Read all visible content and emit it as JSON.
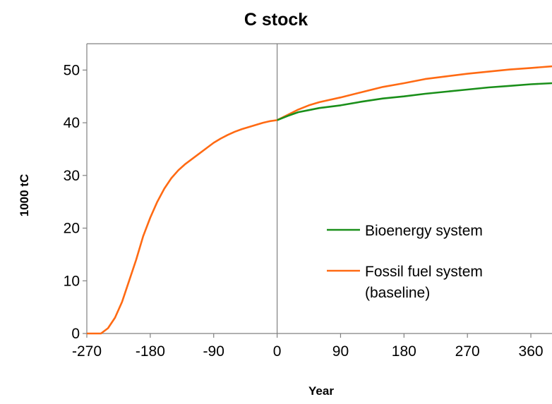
{
  "chart_data": {
    "type": "line",
    "title": "C stock",
    "xlabel": "Year",
    "ylabel": "1000 tC",
    "xlim": [
      -270,
      390
    ],
    "ylim": [
      0,
      55
    ],
    "xticks": [
      -270,
      -180,
      -90,
      0,
      90,
      180,
      270,
      360
    ],
    "yticks": [
      0,
      10,
      20,
      30,
      40,
      50
    ],
    "grid": false,
    "legend_position": "right",
    "vertical_reference_line_x": 0,
    "series": [
      {
        "name": "Fossil fuel system\n(baseline)",
        "color": "#ff6a13",
        "x": [
          -270,
          -250,
          -240,
          -230,
          -220,
          -210,
          -200,
          -190,
          -180,
          -170,
          -160,
          -150,
          -140,
          -130,
          -120,
          -110,
          -100,
          -90,
          -80,
          -70,
          -60,
          -50,
          -40,
          -30,
          -20,
          -10,
          0,
          15,
          30,
          45,
          60,
          90,
          120,
          150,
          180,
          210,
          240,
          270,
          300,
          330,
          360,
          390
        ],
        "values": [
          0,
          0,
          1,
          3,
          6,
          10,
          14,
          18.5,
          22,
          25,
          27.5,
          29.5,
          31,
          32.2,
          33.2,
          34.2,
          35.2,
          36.2,
          37,
          37.7,
          38.3,
          38.8,
          39.2,
          39.6,
          40,
          40.3,
          40.5,
          41.5,
          42.5,
          43.3,
          43.9,
          44.8,
          45.8,
          46.8,
          47.5,
          48.3,
          48.8,
          49.3,
          49.7,
          50.1,
          50.4,
          50.7
        ]
      },
      {
        "name": "Bioenergy system",
        "color": "#1a8f1a",
        "x": [
          0,
          15,
          30,
          45,
          60,
          90,
          120,
          150,
          180,
          210,
          240,
          270,
          300,
          330,
          360,
          390
        ],
        "values": [
          40.5,
          41.3,
          42,
          42.4,
          42.8,
          43.3,
          44,
          44.6,
          45,
          45.5,
          45.9,
          46.3,
          46.7,
          47,
          47.3,
          47.5
        ]
      }
    ]
  }
}
